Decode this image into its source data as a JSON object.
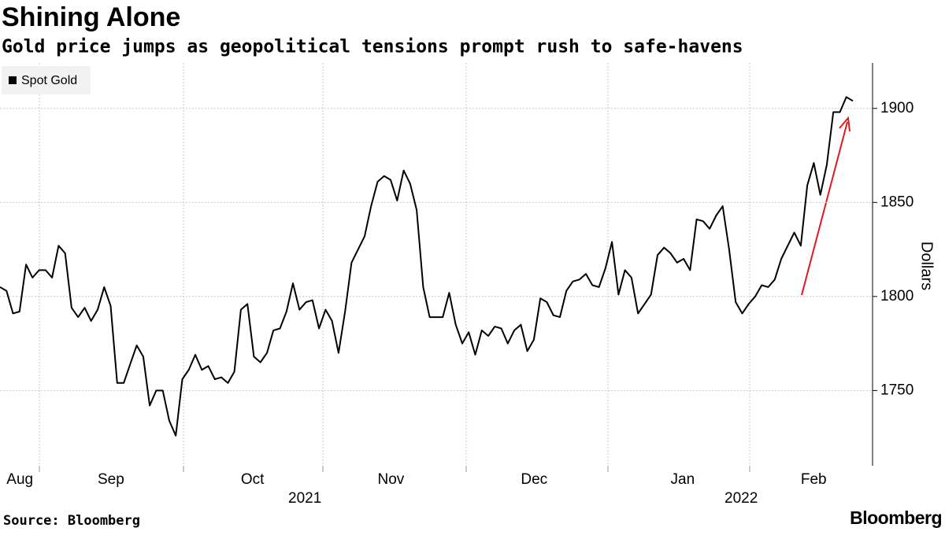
{
  "chart_data": {
    "type": "line",
    "title": "Shining Alone",
    "subtitle": "Gold price jumps as geopolitical tensions prompt rush to safe-havens",
    "y_label": "Dollars",
    "source": "Source: Bloomberg",
    "brand": "Bloomberg",
    "year_labels": [
      "2021",
      "2022"
    ],
    "categories": [
      null,
      "Aug",
      null,
      null,
      null,
      null,
      null,
      null,
      null,
      null,
      null,
      null,
      null,
      null,
      null,
      "Sep",
      null,
      null,
      null,
      null,
      null,
      null,
      null,
      null,
      null,
      null,
      null,
      null,
      null,
      null,
      null,
      null,
      null,
      null,
      null,
      null,
      null,
      "Oct",
      null,
      null,
      null,
      null,
      null,
      null,
      null,
      null,
      null,
      null,
      null,
      null,
      null,
      null,
      null,
      null,
      null,
      null,
      null,
      null,
      "Nov",
      null,
      null,
      null,
      null,
      null,
      null,
      null,
      null,
      null,
      null,
      null,
      null,
      null,
      null,
      null,
      null,
      null,
      null,
      null,
      null,
      null,
      "Dec",
      null,
      null,
      null,
      null,
      null,
      null,
      null,
      null,
      null,
      null,
      null,
      null,
      null,
      null,
      null,
      null,
      null,
      null,
      null,
      null,
      null,
      null,
      "Jan",
      null,
      null,
      null,
      null,
      null,
      null,
      null,
      null,
      null,
      null,
      null,
      null,
      null,
      null,
      null,
      null,
      null,
      null,
      null,
      "Feb",
      null,
      null,
      null,
      null,
      null,
      null,
      null,
      null
    ],
    "series": [
      {
        "name": "Spot Gold",
        "color": "#000000",
        "values": [
          1805,
          1803,
          1791,
          1792,
          1817,
          1810,
          1814,
          1814,
          1810,
          1827,
          1823,
          1794,
          1789,
          1794,
          1787,
          1793,
          1805,
          1795,
          1754,
          1754,
          1764,
          1774,
          1768,
          1742,
          1750,
          1750,
          1734,
          1726,
          1756,
          1761,
          1769,
          1761,
          1763,
          1756,
          1757,
          1754,
          1760,
          1793,
          1796,
          1768,
          1765,
          1770,
          1782,
          1783,
          1792,
          1807,
          1793,
          1797,
          1798,
          1783,
          1793,
          1787,
          1770,
          1792,
          1818,
          1825,
          1832,
          1848,
          1861,
          1864,
          1862,
          1851,
          1867,
          1860,
          1846,
          1805,
          1789,
          1789,
          1789,
          1802,
          1785,
          1775,
          1781,
          1769,
          1782,
          1779,
          1784,
          1783,
          1775,
          1782,
          1785,
          1771,
          1777,
          1799,
          1797,
          1790,
          1789,
          1803,
          1808,
          1809,
          1812,
          1806,
          1805,
          1815,
          1829,
          1801,
          1814,
          1810,
          1791,
          1796,
          1801,
          1822,
          1826,
          1823,
          1818,
          1820,
          1814,
          1841,
          1840,
          1836,
          1843,
          1848,
          1825,
          1797,
          1791,
          1796,
          1800,
          1806,
          1805,
          1809,
          1820,
          1827,
          1834,
          1827,
          1859,
          1871,
          1854,
          1870,
          1898,
          1898,
          1906,
          1904
        ]
      }
    ],
    "ylim": [
      1710,
      1925
    ],
    "yticks": [
      1750,
      1800,
      1850,
      1900
    ],
    "grid": true,
    "legend": "top-left"
  }
}
